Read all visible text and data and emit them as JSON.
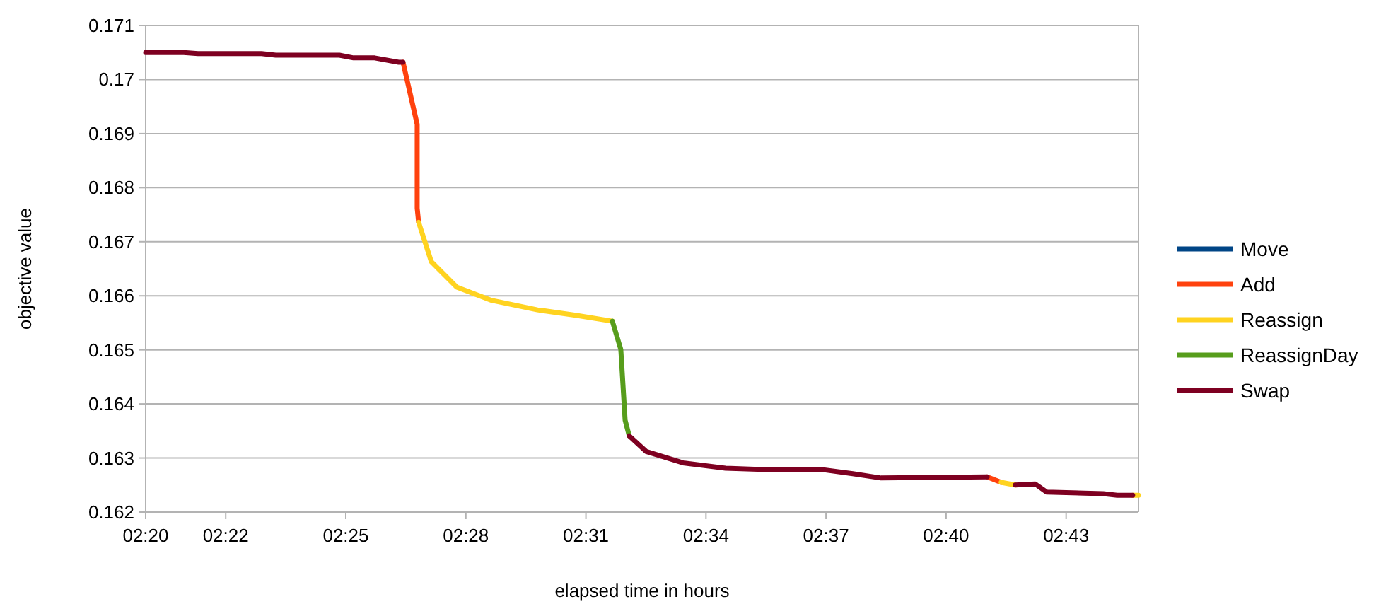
{
  "chart_data": {
    "type": "line",
    "xlabel": "elapsed time in hours",
    "ylabel": "objective value",
    "xlim": [
      2.33333,
      2.7468
    ],
    "ylim": [
      0.162,
      0.171
    ],
    "xticks": [
      {
        "value": 2.33333,
        "label": "02:20"
      },
      {
        "value": 2.36667,
        "label": "02:22"
      },
      {
        "value": 2.41667,
        "label": "02:25"
      },
      {
        "value": 2.46667,
        "label": "02:28"
      },
      {
        "value": 2.51667,
        "label": "02:31"
      },
      {
        "value": 2.56667,
        "label": "02:34"
      },
      {
        "value": 2.61667,
        "label": "02:37"
      },
      {
        "value": 2.66667,
        "label": "02:40"
      },
      {
        "value": 2.71667,
        "label": "02:43"
      }
    ],
    "yticks": [
      0.162,
      0.163,
      0.164,
      0.165,
      0.166,
      0.167,
      0.168,
      0.169,
      0.17,
      0.171
    ],
    "grid": "y",
    "legend": "right",
    "line_style": "solid",
    "marker": "none",
    "series": [
      {
        "name": "Move",
        "color": "#004586"
      },
      {
        "name": "Add",
        "color": "#ff420e",
        "x": [
          2.4405,
          2.4464,
          2.4464,
          2.447,
          null,
          2.6838,
          2.6896
        ],
        "values": [
          0.17032,
          0.16917,
          0.16762,
          0.16736,
          null,
          0.16265,
          0.16255
        ]
      },
      {
        "name": "Reassign",
        "color": "#ffd320",
        "x": [
          2.447,
          2.4523,
          2.4629,
          2.477,
          2.4965,
          2.5124,
          2.5277,
          null,
          2.6896,
          2.6955,
          null,
          2.7444,
          2.7468
        ],
        "values": [
          0.16736,
          0.16663,
          0.16616,
          0.16592,
          0.16574,
          0.16564,
          0.16553,
          null,
          0.16255,
          0.1625,
          null,
          0.16231,
          0.16231
        ]
      },
      {
        "name": "ReassignDay",
        "color": "#579d1c",
        "x": [
          2.5277,
          2.5312,
          2.533,
          2.5347
        ],
        "values": [
          0.16553,
          0.16501,
          0.1637,
          0.16341
        ]
      },
      {
        "name": "Swap",
        "color": "#7e0021",
        "x": [
          2.33333,
          2.3492,
          2.3551,
          2.3816,
          2.3875,
          2.414,
          2.4199,
          2.4287,
          2.4387,
          2.4405,
          null,
          2.5347,
          2.5418,
          2.5571,
          2.5748,
          2.5948,
          2.616,
          2.6278,
          2.6396,
          2.6838,
          null,
          2.6955,
          2.7038,
          2.7085,
          2.7321,
          2.7379,
          2.7444
        ],
        "values": [
          0.1705,
          0.1705,
          0.17048,
          0.17048,
          0.17045,
          0.17045,
          0.1704,
          0.1704,
          0.17032,
          0.17032,
          null,
          0.16341,
          0.16312,
          0.16291,
          0.16281,
          0.16278,
          0.16278,
          0.16271,
          0.16263,
          0.16265,
          null,
          0.1625,
          0.16252,
          0.16237,
          0.16234,
          0.16231,
          0.16231
        ]
      }
    ]
  }
}
